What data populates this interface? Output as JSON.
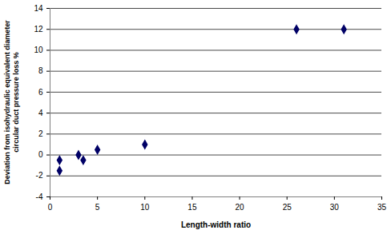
{
  "chart_data": {
    "type": "scatter",
    "x": [
      1,
      1,
      3,
      3.5,
      5,
      10,
      26,
      31
    ],
    "values": [
      -0.5,
      -1.5,
      0,
      -0.5,
      0.5,
      1,
      12,
      12
    ],
    "x_label": "Length-width ratio",
    "y_label": "Deviation from isohydraulic equivalent diameter\ncircular duct pressure loss %",
    "xlim": [
      0,
      35
    ],
    "xticks": [
      0,
      5,
      10,
      15,
      20,
      25,
      30,
      35
    ],
    "ylim": [
      -4,
      14
    ],
    "yticks": [
      -4,
      -2,
      0,
      2,
      4,
      6,
      8,
      10,
      12,
      14
    ],
    "grid": true,
    "color": "#000066",
    "marker": "diamond"
  }
}
